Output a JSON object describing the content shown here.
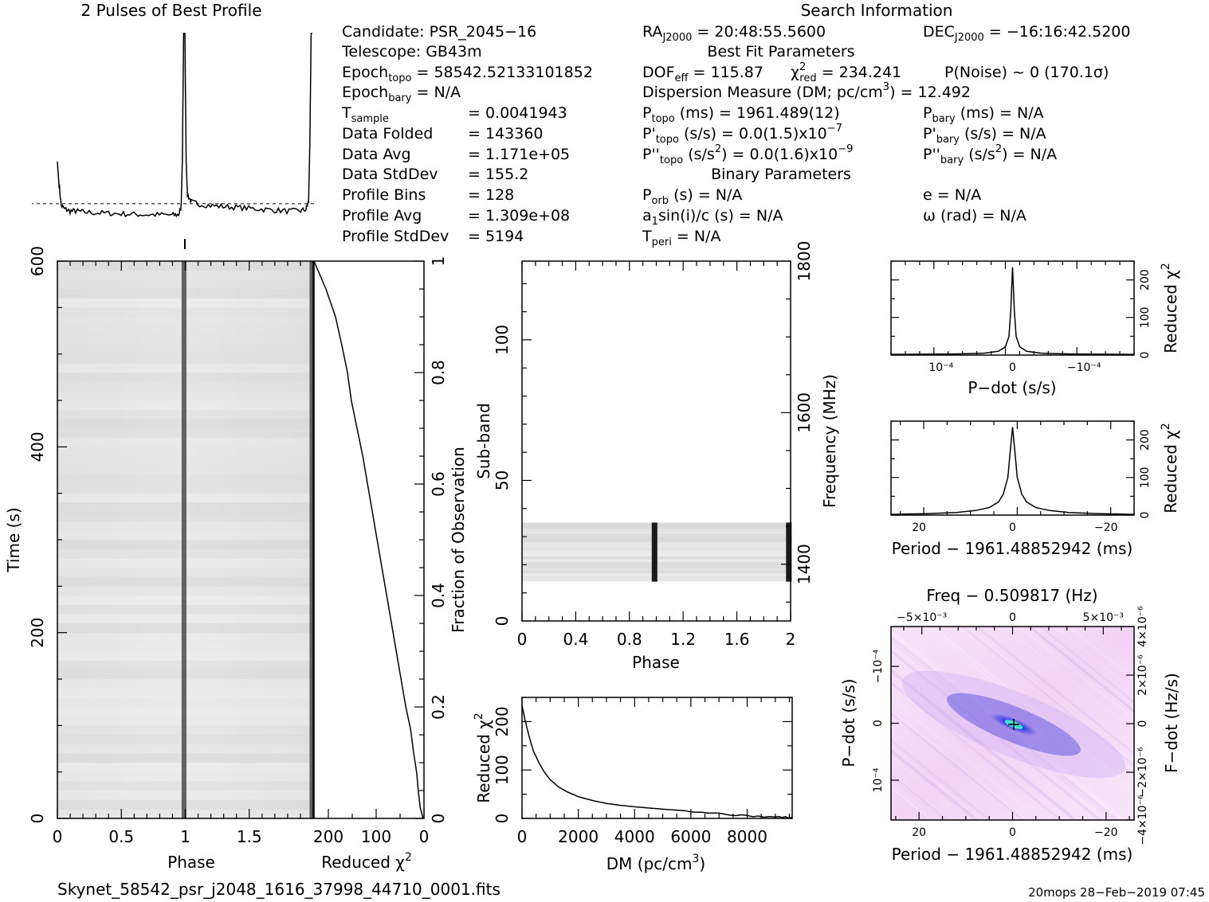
{
  "profile": {
    "title": "2 Pulses of Best Profile"
  },
  "info": {
    "search_title": "Search Information",
    "candidate": "Candidate:  PSR_2045−16",
    "telescope": "Telescope:  GB43m",
    "epoch_topo_label": "Epoch",
    "epoch_topo_sub": "topo",
    "epoch_topo_value": " = 58542.52133101852",
    "epoch_bary_label": "Epoch",
    "epoch_bary_sub": "bary",
    "epoch_bary_value": " = N/A",
    "tsample_label": "T",
    "tsample_sub": "sample",
    "tsample_value": "=   0.0041943",
    "data_folded_label": "Data Folded",
    "data_folded_value": "=   143360",
    "data_avg_label": "Data Avg",
    "data_avg_value": "=   1.171e+05",
    "data_std_label": "Data StdDev",
    "data_std_value": "=   155.2",
    "profile_bins_label": "Profile Bins",
    "profile_bins_value": "=   128",
    "profile_avg_label": "Profile Avg",
    "profile_avg_value": "=   1.309e+08",
    "profile_std_label": "Profile StdDev",
    "profile_std_value": "=   5194",
    "ra_label": "RA",
    "ra_sub": "J2000",
    "ra_value": " = 20:48:55.5600",
    "dec_label": "DEC",
    "dec_sub": "J2000",
    "dec_value": " = −16:16:42.5200",
    "best_fit_title": "Best Fit Parameters",
    "dof_label": "DOF",
    "dof_sub": "eff",
    "dof_value": " = 115.87",
    "chi_label": "χ",
    "chi_sup": "2",
    "chi_sub": "red",
    "chi_value": " = 234.241",
    "pnoise": "P(Noise) ~ 0    (170.1σ)",
    "dm_line": "Dispersion Measure (DM; pc/cm",
    "dm_sup": "3",
    "dm_value": ") = 12.492",
    "ptopo_label": "P",
    "ptopo_sub": "topo",
    "ptopo_value": " (ms) =  1961.489(12)",
    "pdtopo_label": "P'",
    "pdtopo_sub": "topo",
    "pdtopo_value": " (s/s) = 0.0(1.5)x10",
    "pdtopo_exp": "−7",
    "pddtopo_label": "P''",
    "pddtopo_sub": "topo",
    "pddtopo_value": " (s/s",
    "pddtopo_sq": "2",
    "pddtopo_rest": ") = 0.0(1.6)x10",
    "pddtopo_exp": "−9",
    "pbary_label": "P",
    "pbary_sub": "bary",
    "pbary_value": " (ms) = N/A",
    "pdbary_label": "P'",
    "pdbary_sub": "bary",
    "pdbary_value": " (s/s) = N/A",
    "pddbary_label": "P''",
    "pddbary_sub": "bary",
    "pddbary_value": " (s/s",
    "pddbary_sq": "2",
    "pddbary_rest": ") = N/A",
    "binary_title": "Binary Parameters",
    "porb_label": "P",
    "porb_sub": "orb",
    "porb_value": " (s) = N/A",
    "a1_label": "a",
    "a1_sub": "1",
    "a1_value": "sin(i)/c (s) = N/A",
    "tperi_label": "T",
    "tperi_sub": "peri",
    "tperi_value": " = N/A",
    "e_value": "e = N/A",
    "omega_value": "ω (rad) = N/A"
  },
  "footer": {
    "filename": "Skynet_58542_psr_j2048_1616_37998_44710_0001.fits",
    "stamp": "20mops 28−Feb−2019 07:45"
  },
  "colors": {
    "ink": "#000000",
    "grey_light": "#e8e8e8",
    "grey_dark": "#303030",
    "ppdot_base": "#f6dcf8",
    "ppdot_blue": "#2020d0",
    "ppdot_cyan": "#40e0d0"
  },
  "chart_data": [
    {
      "id": "profile",
      "type": "line",
      "title": "2 Pulses of Best Profile",
      "x_range": [
        0,
        2
      ],
      "x": [
        0.0,
        0.01,
        0.03,
        0.06,
        0.1,
        0.15,
        0.2,
        0.3,
        0.4,
        0.5,
        0.6,
        0.7,
        0.8,
        0.9,
        0.95,
        0.97,
        0.98,
        0.99,
        1.0,
        1.01,
        1.02,
        1.05,
        1.1,
        1.2,
        1.3,
        1.4,
        1.5,
        1.6,
        1.7,
        1.8,
        1.9,
        1.95,
        1.97,
        1.98,
        1.99,
        2.0
      ],
      "values": [
        0.3,
        0.2,
        0.06,
        0.04,
        0.03,
        0.03,
        0.025,
        0.02,
        0.018,
        0.015,
        0.012,
        0.01,
        0.01,
        0.008,
        0.01,
        0.05,
        0.3,
        1.0,
        1.0,
        0.3,
        0.12,
        0.08,
        0.07,
        0.06,
        0.055,
        0.05,
        0.045,
        0.04,
        0.035,
        0.03,
        0.03,
        0.04,
        0.08,
        0.4,
        1.0,
        1.0
      ],
      "baseline": 0.07
    },
    {
      "id": "time-phase",
      "type": "heatmap",
      "xlabel": "Phase",
      "ylabel": "Time (s)",
      "xlim": [
        0,
        2
      ],
      "ylim": [
        0,
        600
      ],
      "xticks": [
        "0",
        "0.5",
        "1",
        "1.5"
      ],
      "yticks": [
        "0",
        "200",
        "400",
        "600"
      ],
      "pulse_phase": [
        0.99,
        1.99
      ]
    },
    {
      "id": "chi-vs-time",
      "type": "line",
      "xlabel": "Reduced χ",
      "xlabel_sup": "2",
      "ylabel_right": "Fraction of Observation",
      "xlim": [
        230,
        0
      ],
      "ylim": [
        0,
        1
      ],
      "xticks": [
        "200",
        "100",
        "0"
      ],
      "yticks": [
        "0",
        "0.2",
        "0.4",
        "0.6",
        "0.8",
        "1"
      ],
      "y": [
        0.0,
        0.02,
        0.05,
        0.08,
        0.12,
        0.16,
        0.2,
        0.25,
        0.3,
        0.35,
        0.4,
        0.45,
        0.5,
        0.55,
        0.6,
        0.65,
        0.7,
        0.75,
        0.8,
        0.85,
        0.9,
        0.95,
        0.98,
        1.0
      ],
      "values": [
        2,
        8,
        12,
        15,
        22,
        28,
        38,
        48,
        58,
        68,
        78,
        88,
        98,
        108,
        118,
        128,
        140,
        152,
        160,
        172,
        185,
        205,
        220,
        230
      ]
    },
    {
      "id": "subband-phase",
      "type": "heatmap",
      "xlabel": "Phase",
      "ylabel": "Sub-band",
      "ylabel_right": "Frequency (MHz)",
      "xlim": [
        0,
        2
      ],
      "ylim": [
        0,
        128
      ],
      "xticks": [
        "0",
        "0.4",
        "0.8",
        "1.2",
        "1.6",
        "2"
      ],
      "yticks": [
        "0",
        "50",
        "100"
      ],
      "freq_ticks": [
        "1400",
        "1600",
        "1800"
      ],
      "band_range": [
        14,
        35
      ],
      "pulse_phase": [
        0.99,
        1.99
      ]
    },
    {
      "id": "chi-vs-dm",
      "type": "line",
      "xlabel": "DM (pc/cm",
      "xlabel_sup": "3",
      "xlabel_end": ")",
      "ylabel": "Reduced χ",
      "ylabel_sup": "2",
      "xlim": [
        0,
        9600
      ],
      "ylim": [
        0,
        250
      ],
      "xticks": [
        "0",
        "2000",
        "4000",
        "6000",
        "8000"
      ],
      "yticks": [
        "0",
        "100",
        "200"
      ],
      "x": [
        0,
        100,
        250,
        400,
        600,
        800,
        1000,
        1300,
        1600,
        2000,
        2500,
        3000,
        3500,
        4000,
        5000,
        6000,
        7000,
        8000,
        9000,
        9600
      ],
      "values": [
        234,
        205,
        170,
        140,
        115,
        95,
        80,
        65,
        55,
        45,
        37,
        31,
        27,
        24,
        19,
        15,
        10,
        5,
        3,
        2
      ]
    },
    {
      "id": "chi-vs-pdot",
      "type": "line",
      "xlabel": "P−dot (s/s)",
      "ylabel_right": "Reduced χ",
      "ylabel_right_sup": "2",
      "xlim": [
        0.00017,
        -0.00017
      ],
      "ylim": [
        0,
        250
      ],
      "xticks": [
        "10⁻⁴",
        "0",
        "−10⁻⁴"
      ],
      "yticks": [
        "0",
        "100",
        "200"
      ],
      "x": [
        0.00017,
        8e-05,
        4e-05,
        2e-05,
        1e-05,
        5e-06,
        2.5e-06,
        0.0,
        -2.5e-06,
        -5e-06,
        -1e-05,
        -2e-05,
        -4e-05,
        -8e-05,
        -0.00017
      ],
      "values": [
        2,
        3,
        5,
        10,
        22,
        50,
        120,
        234,
        120,
        50,
        22,
        10,
        5,
        3,
        2
      ]
    },
    {
      "id": "chi-vs-period",
      "type": "line",
      "xlabel": "Period − 1961.48852942 (ms)",
      "ylabel_right": "Reduced χ",
      "ylabel_right_sup": "2",
      "xlim": [
        26,
        -26
      ],
      "ylim": [
        0,
        250
      ],
      "xticks": [
        "20",
        "0",
        "−20"
      ],
      "yticks": [
        "0",
        "100",
        "200"
      ],
      "x": [
        26,
        18,
        12,
        8,
        5,
        3,
        2,
        1,
        0.5,
        0,
        -0.5,
        -1,
        -2,
        -3,
        -5,
        -8,
        -12,
        -18,
        -26
      ],
      "values": [
        2,
        4,
        7,
        12,
        20,
        35,
        55,
        100,
        170,
        234,
        170,
        100,
        55,
        35,
        20,
        12,
        7,
        4,
        2
      ]
    },
    {
      "id": "period-pdot",
      "type": "heatmap",
      "title": "Freq − 0.509817 (Hz)",
      "xlabel": "Period − 1961.48852942 (ms)",
      "ylabel": "P−dot (s/s)",
      "ylabel_right": "F−dot (Hz/s)",
      "xlim": [
        26,
        -26
      ],
      "xticks": [
        "20",
        "0",
        "−20"
      ],
      "freq_ticks": [
        "−5×10⁻³",
        "0",
        "5×10⁻³"
      ],
      "yticks": [
        "−10⁻⁴",
        "0",
        "10⁻⁴"
      ],
      "fdot_ticks": [
        "4×10⁻⁶",
        "2×10⁻⁶",
        "0",
        "−2×10⁻⁶",
        "−4×10⁻⁶"
      ]
    }
  ]
}
